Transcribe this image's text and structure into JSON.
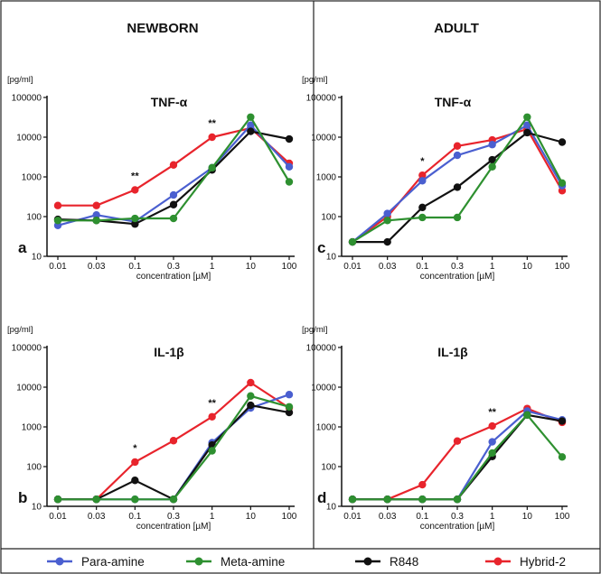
{
  "column_headers": [
    "NEWBORN",
    "ADULT"
  ],
  "colors": {
    "Para-amine": "#4a5fd0",
    "Meta-amine": "#2e9030",
    "R848": "#111111",
    "Hybrid-2": "#e8242c"
  },
  "legend": [
    "Para-amine",
    "Meta-amine",
    "R848",
    "Hybrid-2"
  ],
  "chart_data": [
    {
      "panel": "a",
      "type": "line",
      "title": "TNF-α",
      "unit": "[pg/ml]",
      "xlabel": "concentration [µM]",
      "scale": "log",
      "ylim": [
        10,
        100000
      ],
      "categories": [
        "0.01",
        "0.03",
        "0.1",
        "0.3",
        "1",
        "10",
        "100"
      ],
      "yticks": [
        "10",
        "100",
        "1000",
        "10000",
        "100000"
      ],
      "annotations": [
        {
          "x": "0.1",
          "text": "**"
        },
        {
          "x": "1",
          "text": "**"
        }
      ],
      "series": [
        {
          "name": "Para-amine",
          "values": [
            60,
            110,
            75,
            350,
            1700,
            20000,
            1800
          ]
        },
        {
          "name": "Meta-amine",
          "values": [
            80,
            80,
            90,
            90,
            1700,
            32000,
            750
          ]
        },
        {
          "name": "R848",
          "values": [
            85,
            80,
            65,
            200,
            1500,
            14000,
            9000
          ]
        },
        {
          "name": "Hybrid-2",
          "values": [
            190,
            190,
            470,
            2000,
            10000,
            17000,
            2200
          ]
        }
      ]
    },
    {
      "panel": "c",
      "type": "line",
      "title": "TNF-α",
      "unit": "[pg/ml]",
      "xlabel": "concentration [µM]",
      "scale": "log",
      "ylim": [
        10,
        100000
      ],
      "categories": [
        "0.01",
        "0.03",
        "0.1",
        "0.3",
        "1",
        "10",
        "100"
      ],
      "yticks": [
        "10",
        "100",
        "1000",
        "10000",
        "100000"
      ],
      "annotations": [
        {
          "x": "0.1",
          "text": "*"
        }
      ],
      "series": [
        {
          "name": "Para-amine",
          "values": [
            23,
            120,
            800,
            3500,
            6500,
            20000,
            600
          ]
        },
        {
          "name": "Meta-amine",
          "values": [
            23,
            80,
            95,
            95,
            1800,
            32000,
            700
          ]
        },
        {
          "name": "R848",
          "values": [
            23,
            23,
            170,
            550,
            2700,
            13000,
            7500
          ]
        },
        {
          "name": "Hybrid-2",
          "values": [
            23,
            100,
            1100,
            6000,
            8500,
            16000,
            450
          ]
        }
      ]
    },
    {
      "panel": "b",
      "type": "line",
      "title": "IL-1β",
      "unit": "[pg/ml]",
      "xlabel": "concentration [µM]",
      "scale": "log",
      "ylim": [
        10,
        100000
      ],
      "categories": [
        "0.01",
        "0.03",
        "0.1",
        "0.3",
        "1",
        "10",
        "100"
      ],
      "yticks": [
        "10",
        "100",
        "1000",
        "10000",
        "100000"
      ],
      "annotations": [
        {
          "x": "0.1",
          "text": "*"
        },
        {
          "x": "1",
          "text": "**"
        }
      ],
      "series": [
        {
          "name": "Para-amine",
          "values": [
            15,
            15,
            15,
            15,
            400,
            3000,
            6500
          ]
        },
        {
          "name": "Meta-amine",
          "values": [
            15,
            15,
            15,
            15,
            250,
            6000,
            3200
          ]
        },
        {
          "name": "R848",
          "values": [
            15,
            15,
            45,
            15,
            350,
            3500,
            2300
          ]
        },
        {
          "name": "Hybrid-2",
          "values": [
            15,
            15,
            130,
            450,
            1800,
            13000,
            3000
          ]
        }
      ]
    },
    {
      "panel": "d",
      "type": "line",
      "title": "IL-1β",
      "unit": "[pg/ml]",
      "xlabel": "concentration [µM]",
      "scale": "log",
      "ylim": [
        10,
        100000
      ],
      "categories": [
        "0.01",
        "0.03",
        "0.1",
        "0.3",
        "1",
        "10",
        "100"
      ],
      "yticks": [
        "10",
        "100",
        "1000",
        "10000",
        "100000"
      ],
      "annotations": [
        {
          "x": "1",
          "text": "**"
        }
      ],
      "series": [
        {
          "name": "Para-amine",
          "values": [
            15,
            15,
            15,
            15,
            420,
            2500,
            1500
          ]
        },
        {
          "name": "Meta-amine",
          "values": [
            15,
            15,
            15,
            15,
            220,
            2000,
            175
          ]
        },
        {
          "name": "R848",
          "values": [
            15,
            15,
            15,
            15,
            180,
            2000,
            1400
          ]
        },
        {
          "name": "Hybrid-2",
          "values": [
            15,
            15,
            35,
            440,
            1050,
            2900,
            1300
          ]
        }
      ]
    }
  ]
}
